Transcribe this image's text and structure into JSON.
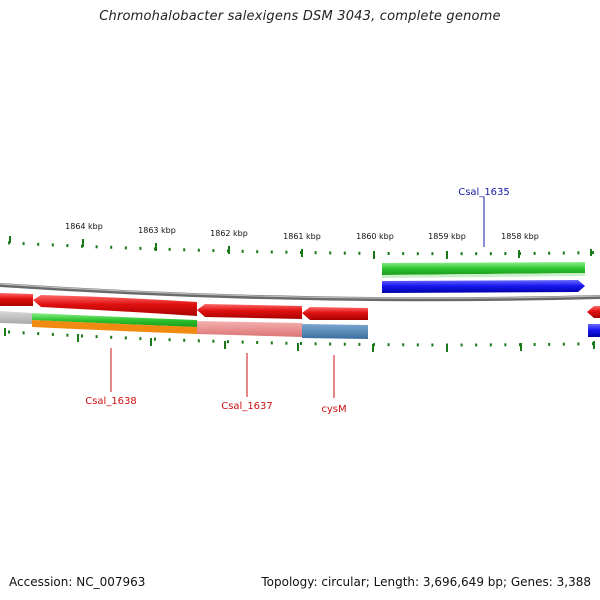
{
  "title": "Chromohalobacter salexigens DSM 3043, complete genome",
  "footer": {
    "accession": "Accession: NC_007963",
    "summary": "Topology: circular; Length: 3,696,649 bp; Genes: 3,388"
  },
  "scale_labels": [
    "1864 kbp",
    "1863 kbp",
    "1862 kbp",
    "1861 kbp",
    "1860 kbp",
    "1859 kbp",
    "1858 kbp"
  ],
  "genes": {
    "csal_1635": "Csal_1635",
    "csal_1638": "Csal_1638",
    "csal_1637": "Csal_1637",
    "cysM": "cysM"
  },
  "colors": {
    "forward_cds": "#2020e8",
    "reverse_cds": "#e01515",
    "green_track": "#2ec42e",
    "orange_track": "#f08a10",
    "pink_track": "#e88a8a",
    "steel_track": "#4f86b8",
    "tick": "#1a7a1a",
    "label_blue": "#1a1aa8",
    "label_red": "#cc1111"
  }
}
